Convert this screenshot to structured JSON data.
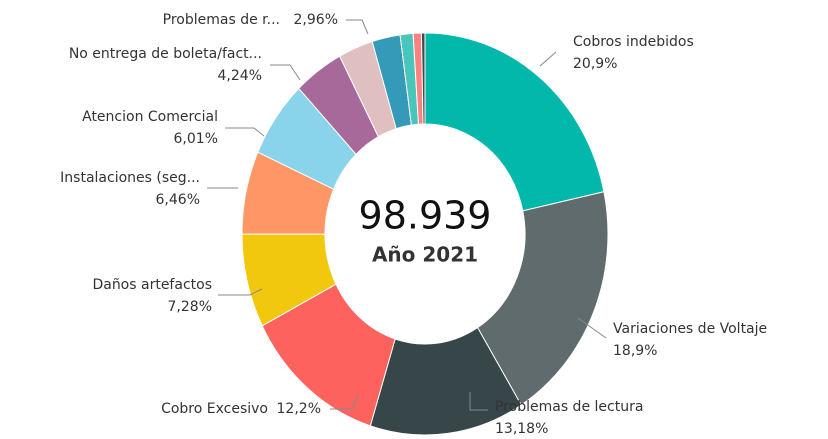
{
  "chart_data": {
    "type": "donut",
    "center_label": "98.939",
    "center_sublabel": "Año 2021",
    "categories": [
      "Cobros indebidos",
      "Variaciones de Voltaje",
      "Problemas de lectura",
      "Cobro Excesivo",
      "Daños artefactos",
      "Instalaciones (seg...",
      "Atencion Comercial",
      "No entrega de boleta/fact...",
      "Problemas de r...",
      null,
      null,
      null,
      null
    ],
    "values": [
      20.9,
      18.9,
      13.18,
      12.2,
      7.28,
      6.46,
      6.01,
      4.24,
      2.96,
      2.4,
      1.1,
      0.7,
      0.3
    ],
    "value_labels": [
      "20,9%",
      "18,9%",
      "13,18%",
      "12,2%",
      "7,28%",
      "6,46%",
      "6,01%",
      "4,24%",
      "2,96%",
      null,
      null,
      null,
      null
    ],
    "colors": [
      "#01b8aa",
      "#5f6b6d",
      "#374649",
      "#fd625e",
      "#f2c80f",
      "#fe9666",
      "#8ad4eb",
      "#a66999",
      "#dfbfbf",
      "#3599b8",
      "#4ac5bb",
      "#fb8281",
      "#404a4c"
    ]
  }
}
